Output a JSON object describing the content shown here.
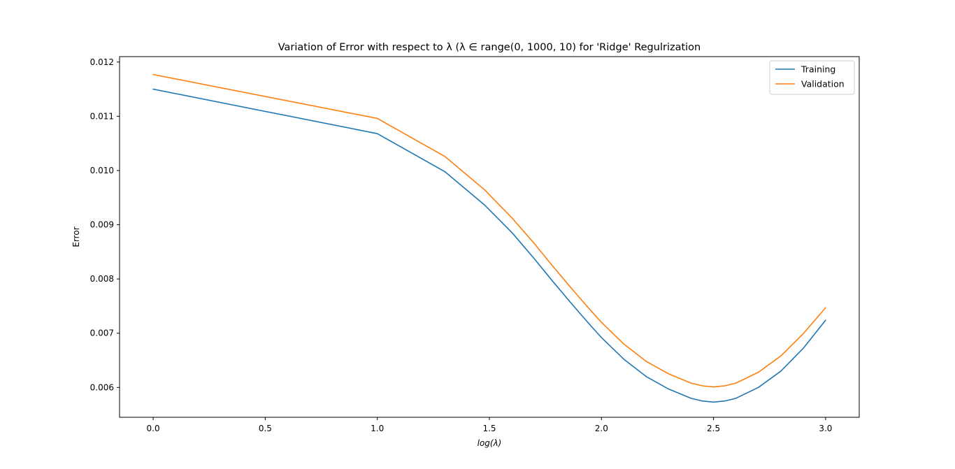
{
  "chart_data": {
    "type": "line",
    "title": "Variation of Error with respect to λ (λ ∈ range(0, 1000, 10) for 'Ridge' Regulrization",
    "xlabel": "log(λ)",
    "ylabel": "Error",
    "xlim": [
      -0.15,
      3.15
    ],
    "ylim": [
      0.00545,
      0.0121
    ],
    "xticks": [
      0.0,
      0.5,
      1.0,
      1.5,
      2.0,
      2.5,
      3.0
    ],
    "xtick_labels": [
      "0.0",
      "0.5",
      "1.0",
      "1.5",
      "2.0",
      "2.5",
      "3.0"
    ],
    "yticks": [
      0.006,
      0.007,
      0.008,
      0.009,
      0.01,
      0.011,
      0.012
    ],
    "ytick_labels": [
      "0.006",
      "0.007",
      "0.008",
      "0.009",
      "0.010",
      "0.011",
      "0.012"
    ],
    "grid": false,
    "legend_position": "top-right",
    "x": [
      0.0,
      1.0,
      1.301,
      1.477,
      1.602,
      1.699,
      1.778,
      1.845,
      1.903,
      1.954,
      2.0,
      2.1,
      2.2,
      2.3,
      2.4,
      2.45,
      2.5,
      2.55,
      2.6,
      2.7,
      2.8,
      2.9,
      3.0
    ],
    "series": [
      {
        "name": "Training",
        "color": "#1f77b4",
        "values": [
          0.0115,
          0.01068,
          0.00998,
          0.00937,
          0.00885,
          0.00838,
          0.00798,
          0.00765,
          0.00737,
          0.00713,
          0.00692,
          0.00652,
          0.0062,
          0.00597,
          0.0058,
          0.00575,
          0.00573,
          0.00575,
          0.0058,
          0.006,
          0.0063,
          0.00672,
          0.00724
        ]
      },
      {
        "name": "Validation",
        "color": "#ff7f0e",
        "values": [
          0.01177,
          0.01096,
          0.01026,
          0.00965,
          0.00912,
          0.00866,
          0.00826,
          0.00793,
          0.00765,
          0.00741,
          0.0072,
          0.0068,
          0.00648,
          0.00625,
          0.00608,
          0.00603,
          0.00601,
          0.00603,
          0.00608,
          0.00628,
          0.00658,
          0.00699,
          0.00747
        ]
      }
    ]
  }
}
